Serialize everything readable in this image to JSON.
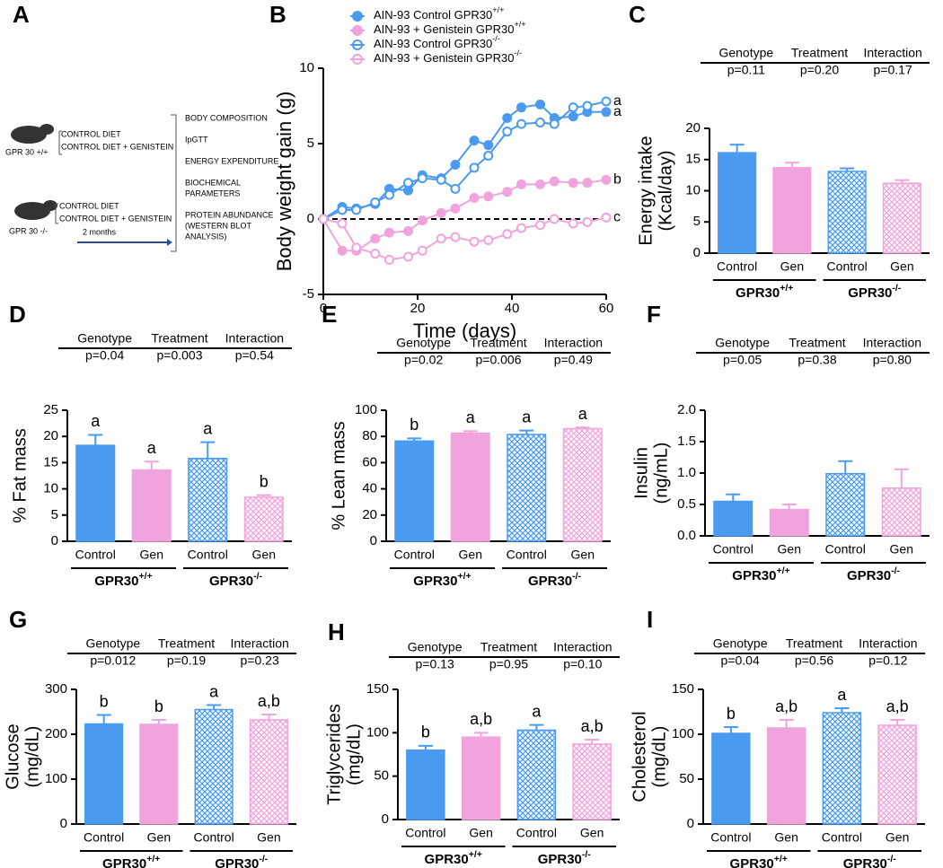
{
  "schematic": {
    "panel": "A",
    "groups": [
      {
        "genotype": "GPR 30 +/+",
        "diets": [
          "CONTROL DIET",
          "CONTROL DIET + GENISTEIN"
        ]
      },
      {
        "genotype": "GPR 30 -/-",
        "diets": [
          "CONTROL DIET",
          "CONTROL DIET + GENISTEIN"
        ]
      }
    ],
    "duration": "2 months",
    "outcomes": [
      [
        "BODY COMPOSITION"
      ],
      [
        "IpGTT"
      ],
      [
        "ENERGY EXPENDITURE"
      ],
      [
        "BIOCHEMICAL",
        "PARAMETERS"
      ],
      [
        "PROTEIN ABUNDANCE",
        "(WESTERN BLOT",
        "ANALYSIS)"
      ]
    ]
  },
  "chart_data": [
    {
      "type": "line",
      "panel": "B",
      "xlabel": "Time (days)",
      "ylabel": "Body weight gain (g)",
      "xlim": [
        0,
        60
      ],
      "xticks": [
        0,
        20,
        40,
        60
      ],
      "ylim": [
        -5,
        10
      ],
      "yticks": [
        -5,
        0,
        5,
        10
      ],
      "zero_line": true,
      "x": [
        0,
        4,
        7,
        11,
        14,
        18,
        21,
        25,
        28,
        32,
        35,
        39,
        42,
        46,
        49,
        53,
        56,
        60
      ],
      "series": [
        {
          "name": "AIN-93 Control GPR30+/+",
          "color": "#4a9bf0",
          "filled": true,
          "end_label": "a",
          "values": [
            0,
            0.8,
            0.7,
            1.0,
            2.0,
            1.9,
            2.9,
            2.7,
            3.6,
            5.2,
            4.9,
            6.7,
            7.4,
            7.6,
            6.7,
            6.8,
            7.1,
            7.1
          ]
        },
        {
          "name": "AIN-93 + Genistein GPR30+/+",
          "color": "#f0a3dc",
          "filled": true,
          "end_label": "b",
          "values": [
            0,
            -2.1,
            -2.1,
            -1.3,
            -0.9,
            -0.8,
            -0.1,
            0.4,
            0.7,
            1.4,
            1.5,
            1.8,
            2.3,
            2.3,
            2.5,
            2.4,
            2.4,
            2.6
          ]
        },
        {
          "name": "AIN-93 Control GPR30-/-",
          "color": "#4a9bf0",
          "filled": false,
          "end_label": "a",
          "values": [
            0,
            0.6,
            0.6,
            1.1,
            1.6,
            2.4,
            2.7,
            2.6,
            2.0,
            3.4,
            4.2,
            5.8,
            6.3,
            6.4,
            6.3,
            7.4,
            7.5,
            7.8
          ]
        },
        {
          "name": "AIN-93 + Genistein GPR30-/-",
          "color": "#f0a3dc",
          "filled": false,
          "end_label": "c",
          "values": [
            0,
            -0.3,
            -1.9,
            -2.3,
            -2.7,
            -2.5,
            -2.1,
            -1.3,
            -1.2,
            -1.5,
            -1.4,
            -1.0,
            -0.6,
            -0.4,
            0.0,
            -0.3,
            -0.2,
            0.1
          ]
        }
      ]
    },
    {
      "type": "bar",
      "panel": "C",
      "ylabel": [
        "Energy intake",
        "(Kcal/day)"
      ],
      "stats_headers": [
        "Genotype",
        "Treatment",
        "Interaction"
      ],
      "stats": [
        "p=0.11",
        "p=0.20",
        "p=0.17"
      ],
      "categories": [
        "Control",
        "Gen",
        "Control",
        "Gen"
      ],
      "groups": [
        "GPR30+/+",
        "GPR30-/-"
      ],
      "colors": [
        "#4a9bf0",
        "#f0a3dc",
        "#4a9bf0",
        "#f0a3dc"
      ],
      "fills": [
        "solid",
        "solid",
        "hatch",
        "hatch"
      ],
      "values": [
        16.1,
        13.7,
        13.1,
        11.2
      ],
      "errors": [
        1.3,
        0.8,
        0.5,
        0.5
      ],
      "ylim": [
        0,
        20
      ],
      "yticks": [
        0,
        5,
        10,
        15,
        20
      ]
    },
    {
      "type": "bar",
      "panel": "D",
      "ylabel": [
        "% Fat mass"
      ],
      "stats_headers": [
        "Genotype",
        "Treatment",
        "Interaction"
      ],
      "stats": [
        "p=0.04",
        "p=0.003",
        "p=0.54"
      ],
      "categories": [
        "Control",
        "Gen",
        "Control",
        "Gen"
      ],
      "groups": [
        "GPR30+/+",
        "GPR30-/-"
      ],
      "colors": [
        "#4a9bf0",
        "#f0a3dc",
        "#4a9bf0",
        "#f0a3dc"
      ],
      "fills": [
        "solid",
        "solid",
        "hatch",
        "hatch"
      ],
      "values": [
        18.3,
        13.6,
        15.8,
        8.4
      ],
      "errors": [
        2.0,
        1.6,
        3.1,
        0.4
      ],
      "letters": [
        "a",
        "a",
        "a",
        "b"
      ],
      "ylim": [
        0,
        25
      ],
      "yticks": [
        0,
        5,
        10,
        15,
        20,
        25
      ]
    },
    {
      "type": "bar",
      "panel": "E",
      "ylabel": [
        "% Lean mass"
      ],
      "stats_headers": [
        "Genotype",
        "Treatment",
        "Interaction"
      ],
      "stats": [
        "p=0.02",
        "p=0.006",
        "p=0.49"
      ],
      "categories": [
        "Control",
        "Gen",
        "Control",
        "Gen"
      ],
      "groups": [
        "GPR30+/+",
        "GPR30-/-"
      ],
      "colors": [
        "#4a9bf0",
        "#f0a3dc",
        "#4a9bf0",
        "#f0a3dc"
      ],
      "fills": [
        "solid",
        "solid",
        "hatch",
        "hatch"
      ],
      "values": [
        76.5,
        82.5,
        81.5,
        86
      ],
      "errors": [
        2,
        1.5,
        3,
        0.8
      ],
      "letters": [
        "b",
        "a",
        "a",
        "a"
      ],
      "ylim": [
        0,
        100
      ],
      "yticks": [
        0,
        20,
        40,
        60,
        80,
        100
      ]
    },
    {
      "type": "bar",
      "panel": "F",
      "ylabel": [
        "Insulin",
        "(ng/mL)"
      ],
      "stats_headers": [
        "Genotype",
        "Treatment",
        "Interaction"
      ],
      "stats": [
        "p=0.05",
        "p=0.38",
        "p=0.80"
      ],
      "categories": [
        "Control",
        "Gen",
        "Control",
        "Gen"
      ],
      "groups": [
        "GPR30+/+",
        "GPR30-/-"
      ],
      "colors": [
        "#4a9bf0",
        "#f0a3dc",
        "#4a9bf0",
        "#f0a3dc"
      ],
      "fills": [
        "solid",
        "solid",
        "hatch",
        "hatch"
      ],
      "values": [
        0.55,
        0.42,
        0.99,
        0.76
      ],
      "errors": [
        0.11,
        0.08,
        0.2,
        0.3
      ],
      "ylim": [
        0,
        2
      ],
      "yticks": [
        {
          "value": 0,
          "label": "0.0"
        },
        {
          "value": 0.5,
          "label": "0.5"
        },
        {
          "value": 1,
          "label": "1.0"
        },
        {
          "value": 1.5,
          "label": "1.5"
        },
        {
          "value": 2,
          "label": "2.0"
        }
      ]
    },
    {
      "type": "bar",
      "panel": "G",
      "ylabel": [
        "Glucose",
        "(mg/dL)"
      ],
      "stats_headers": [
        "Genotype",
        "Treatment",
        "Interaction"
      ],
      "stats": [
        "p=0.012",
        "p=0.19",
        "p=0.23"
      ],
      "categories": [
        "Control",
        "Gen",
        "Control",
        "Gen"
      ],
      "groups": [
        "GPR30+/+",
        "GPR30-/-"
      ],
      "colors": [
        "#4a9bf0",
        "#f0a3dc",
        "#4a9bf0",
        "#f0a3dc"
      ],
      "fills": [
        "solid",
        "solid",
        "hatch",
        "hatch"
      ],
      "values": [
        223,
        222,
        255,
        232
      ],
      "errors": [
        20,
        10,
        10,
        12
      ],
      "letters": [
        "b",
        "b",
        "a",
        "a,b"
      ],
      "ylim": [
        0,
        300
      ],
      "yticks": [
        0,
        100,
        200,
        300
      ]
    },
    {
      "type": "bar",
      "panel": "H",
      "ylabel": [
        "Triglycerides",
        "(mg/dL)"
      ],
      "stats_headers": [
        "Genotype",
        "Treatment",
        "Interaction"
      ],
      "stats": [
        "p=0.13",
        "p=0.95",
        "p=0.10"
      ],
      "categories": [
        "Control",
        "Gen",
        "Control",
        "Gen"
      ],
      "groups": [
        "GPR30+/+",
        "GPR30-/-"
      ],
      "colors": [
        "#4a9bf0",
        "#f0a3dc",
        "#4a9bf0",
        "#f0a3dc"
      ],
      "fills": [
        "solid",
        "solid",
        "hatch",
        "hatch"
      ],
      "values": [
        80,
        95,
        103,
        87
      ],
      "errors": [
        5,
        5,
        6,
        5
      ],
      "letters": [
        "b",
        "a,b",
        "a",
        "a,b"
      ],
      "ylim": [
        0,
        150
      ],
      "yticks": [
        0,
        50,
        100,
        150
      ]
    },
    {
      "type": "bar",
      "panel": "I",
      "ylabel": [
        "Cholesterol",
        "(mg/dL)"
      ],
      "stats_headers": [
        "Genotype",
        "Treatment",
        "Interaction"
      ],
      "stats": [
        "p=0.04",
        "p=0.56",
        "p=0.12"
      ],
      "categories": [
        "Control",
        "Gen",
        "Control",
        "Gen"
      ],
      "groups": [
        "GPR30+/+",
        "GPR30-/-"
      ],
      "colors": [
        "#4a9bf0",
        "#f0a3dc",
        "#4a9bf0",
        "#f0a3dc"
      ],
      "fills": [
        "solid",
        "solid",
        "hatch",
        "hatch"
      ],
      "values": [
        101,
        107,
        124,
        110
      ],
      "errors": [
        7,
        9,
        5,
        6
      ],
      "letters": [
        "b",
        "a,b",
        "a",
        "a,b"
      ],
      "ylim": [
        0,
        150
      ],
      "yticks": [
        0,
        50,
        100,
        150
      ]
    }
  ]
}
